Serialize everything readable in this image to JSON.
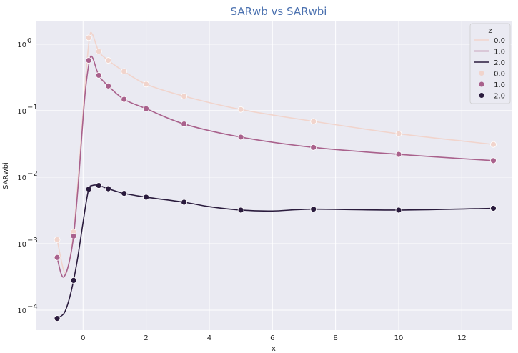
{
  "chart_data": {
    "type": "line",
    "title": "SARwb vs SARwbi",
    "xlabel": "x",
    "ylabel": "SARwbi",
    "yscale": "log",
    "xlim": [
      -1.5,
      13.6
    ],
    "ylim": [
      5e-05,
      2.2
    ],
    "xticks": [
      0,
      2,
      4,
      6,
      8,
      10,
      12
    ],
    "xtick_labels": [
      "0",
      "2",
      "4",
      "6",
      "8",
      "10",
      "12"
    ],
    "yticks": [
      0.0001,
      0.001,
      0.01,
      0.1,
      1
    ],
    "ytick_labels": [
      {
        "base": "10",
        "exp": "−4"
      },
      {
        "base": "10",
        "exp": "−3"
      },
      {
        "base": "10",
        "exp": "−2"
      },
      {
        "base": "10",
        "exp": "−1"
      },
      {
        "base": "10",
        "exp": "0"
      }
    ],
    "grid": true,
    "legend": {
      "title": "z",
      "placement": "top-right",
      "entries": [
        {
          "label": "0.0",
          "kind": "line",
          "series": 0
        },
        {
          "label": "1.0",
          "kind": "line",
          "series": 1
        },
        {
          "label": "2.0",
          "kind": "line",
          "series": 2
        },
        {
          "label": "0.0",
          "kind": "marker",
          "series": 0
        },
        {
          "label": "1.0",
          "kind": "marker",
          "series": 1
        },
        {
          "label": "2.0",
          "kind": "marker",
          "series": 2
        }
      ]
    },
    "series": [
      {
        "name": "0.0",
        "color": "#f1d4cc",
        "line": {
          "x": [
            -0.82,
            -0.6,
            -0.45,
            -0.3,
            -0.15,
            0.05,
            0.2,
            0.3,
            0.5,
            0.8,
            1.3,
            2.0,
            3.2,
            5.0,
            7.3,
            10.0,
            13.0
          ],
          "y": [
            0.00115,
            0.00038,
            0.0005,
            0.0015,
            0.01,
            0.2,
            1.2,
            1.4,
            0.78,
            0.57,
            0.39,
            0.25,
            0.165,
            0.104,
            0.069,
            0.045,
            0.031
          ]
        },
        "points": {
          "x": [
            -0.82,
            -0.3,
            0.18,
            0.5,
            0.8,
            1.3,
            2.0,
            3.2,
            5.0,
            7.3,
            10.0,
            13.0
          ],
          "y": [
            0.00115,
            0.0015,
            1.25,
            0.78,
            0.57,
            0.39,
            0.25,
            0.165,
            0.104,
            0.069,
            0.045,
            0.031
          ]
        }
      },
      {
        "name": "1.0",
        "color": "#a9618c",
        "line": {
          "x": [
            -0.82,
            -0.7,
            -0.6,
            -0.45,
            -0.3,
            -0.15,
            0.05,
            0.2,
            0.3,
            0.5,
            0.8,
            1.3,
            2.0,
            3.2,
            5.0,
            7.3,
            10.0,
            13.0
          ],
          "y": [
            0.00062,
            0.00036,
            0.00032,
            0.0005,
            0.0013,
            0.008,
            0.15,
            0.55,
            0.63,
            0.34,
            0.235,
            0.148,
            0.107,
            0.063,
            0.04,
            0.028,
            0.022,
            0.0177
          ]
        },
        "points": {
          "x": [
            -0.82,
            -0.3,
            0.18,
            0.5,
            0.8,
            1.3,
            2.0,
            3.2,
            5.0,
            7.3,
            10.0,
            13.0
          ],
          "y": [
            0.00062,
            0.0013,
            0.57,
            0.34,
            0.235,
            0.148,
            0.107,
            0.063,
            0.04,
            0.028,
            0.022,
            0.0177
          ]
        }
      },
      {
        "name": "2.0",
        "color": "#2a1b3d",
        "line": {
          "x": [
            -0.82,
            -0.6,
            -0.45,
            -0.3,
            -0.15,
            0.05,
            0.18,
            0.3,
            0.5,
            0.8,
            1.3,
            2.0,
            3.2,
            4.0,
            5.0,
            6.0,
            7.3,
            10.0,
            13.0
          ],
          "y": [
            7.5e-05,
            9e-05,
            0.00014,
            0.00028,
            0.0007,
            0.003,
            0.0066,
            0.0075,
            0.0075,
            0.0067,
            0.0057,
            0.005,
            0.0042,
            0.0036,
            0.0032,
            0.0031,
            0.0033,
            0.0032,
            0.0034
          ]
        },
        "points": {
          "x": [
            -0.82,
            -0.3,
            0.18,
            0.5,
            0.8,
            1.3,
            2.0,
            3.2,
            5.0,
            7.3,
            10.0,
            13.0
          ],
          "y": [
            7.5e-05,
            0.00028,
            0.0066,
            0.0075,
            0.0067,
            0.0057,
            0.005,
            0.0042,
            0.0032,
            0.0033,
            0.0032,
            0.0034
          ]
        }
      }
    ]
  }
}
